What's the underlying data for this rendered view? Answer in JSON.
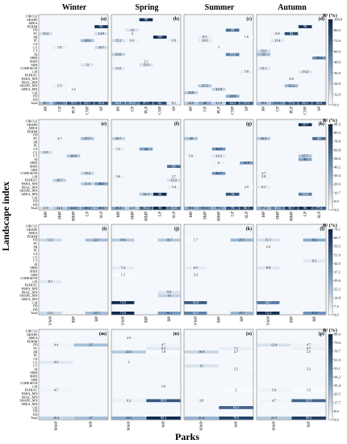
{
  "seasons": [
    "Winter",
    "Spring",
    "Summer",
    "Autumn"
  ],
  "ylabel": "Landscape index",
  "xlabel": "Parks",
  "colorbar_label": "R² (%)",
  "colors": {
    "low": "#ffffff",
    "high": "#0d2a4f"
  },
  "row_labels": [
    "CIRCLE",
    "SHAPE",
    "AREA",
    "PERIM",
    "PD",
    "PC",
    "PR",
    "PL",
    "CS",
    "CV",
    "CT",
    "AI",
    "SHEI",
    "SHDI",
    "SIDI",
    "COHESION",
    "LPI",
    "PAFRAC",
    "PARA_MN",
    "FRAC_MN",
    "SHAPE_MN",
    "AREA_MN",
    "LSI",
    "PD",
    "ED",
    "Total"
  ],
  "colorbars": [
    {
      "ticks": [
        "100.0",
        "86.0",
        "72.0",
        "60.0",
        "48.0",
        "36.0",
        "24.0",
        "12.0",
        "0.0"
      ]
    },
    {
      "ticks": [
        "98.5",
        "89.3",
        "78.6",
        "69.8",
        "58.6",
        "49.2",
        "39.4",
        "29.6",
        "19.7",
        "9.8",
        "0.0"
      ]
    },
    {
      "ticks": [
        "74.1",
        "66.7",
        "59.3",
        "51.9",
        "44.5",
        "37.1",
        "29.6",
        "22.2",
        "14.8",
        "7.4",
        "0.0"
      ]
    },
    {
      "ticks": [
        "88.4",
        "79.6",
        "70.7",
        "61.9",
        "53.1",
        "44.2",
        "35.4",
        "26.5",
        "17.7",
        "8.8",
        "0.0"
      ]
    }
  ],
  "chart_data": [
    {
      "tag": "(a)",
      "row": 0,
      "col": 0,
      "type": "heatmap",
      "categories": [
        "PP",
        "CP",
        "PLP",
        "COP",
        "SP"
      ],
      "cells": [
        [
          3,
          4,
          96.0
        ],
        [
          5,
          0,
          15.4
        ],
        [
          5,
          4,
          14.9
        ],
        [
          7,
          3,
          29.6
        ],
        [
          9,
          1,
          7.8
        ],
        [
          9,
          4,
          16.7
        ],
        [
          14,
          3,
          12
        ],
        [
          20,
          1,
          5.9
        ],
        [
          21,
          2,
          1.6
        ],
        [
          25,
          0,
          29.1
        ],
        [
          25,
          1,
          51.6
        ],
        [
          25,
          2,
          78.5
        ],
        [
          25,
          3,
          82.1
        ],
        [
          25,
          4,
          83.6
        ]
      ]
    },
    {
      "tag": "(b)",
      "row": 0,
      "col": 1,
      "type": "heatmap",
      "categories": [
        "PP",
        "CP",
        "PLP",
        "COP",
        "SP"
      ],
      "cells": [
        [
          1,
          2,
          98.0
        ],
        [
          4,
          1,
          14
        ],
        [
          5,
          1,
          4
        ],
        [
          6,
          3,
          100.0
        ],
        [
          7,
          0,
          15.2
        ],
        [
          7,
          1,
          6.6
        ],
        [
          7,
          4,
          6.9
        ],
        [
          11,
          0,
          21.6
        ],
        [
          13,
          2,
          3.1
        ],
        [
          14,
          2,
          13.9
        ],
        [
          15,
          0,
          11.6
        ],
        [
          25,
          0,
          64.8
        ],
        [
          25,
          1,
          61.9
        ],
        [
          25,
          2,
          87.1
        ],
        [
          25,
          3,
          82.0
        ],
        [
          25,
          4,
          8.1
        ]
      ]
    },
    {
      "tag": "(c)",
      "row": 0,
      "col": 2,
      "type": "heatmap",
      "categories": [
        "PP",
        "CP",
        "PLP",
        "COP",
        "SP"
      ],
      "cells": [
        [
          4,
          3,
          68.0
        ],
        [
          6,
          1,
          8.5
        ],
        [
          7,
          1,
          10.6
        ],
        [
          6,
          4,
          1.6
        ],
        [
          9,
          2,
          3
        ],
        [
          11,
          3,
          59.6
        ],
        [
          16,
          4,
          7.8
        ],
        [
          20,
          1,
          27.3
        ],
        [
          22,
          0,
          24.8
        ],
        [
          21,
          2,
          21.8
        ],
        [
          23,
          3,
          38.9
        ],
        [
          25,
          0,
          24.8
        ],
        [
          25,
          1,
          40.0
        ],
        [
          25,
          2,
          21.8
        ],
        [
          25,
          3,
          84.2
        ],
        [
          25,
          4,
          71.1
        ]
      ]
    },
    {
      "tag": "(d)",
      "row": 0,
      "col": 3,
      "type": "heatmap",
      "categories": [
        "PP",
        "CP",
        "PLP",
        "COP",
        "SP"
      ],
      "cells": [
        [
          3,
          3,
          96.0
        ],
        [
          5,
          1,
          6.8
        ],
        [
          5,
          2,
          84.0
        ],
        [
          7,
          1,
          11.4
        ],
        [
          10,
          0,
          15.6
        ],
        [
          11,
          0,
          31
        ],
        [
          12,
          4,
          50.4
        ],
        [
          15,
          0,
          12.1
        ],
        [
          16,
          3,
          13.2
        ],
        [
          18,
          2,
          4.9
        ],
        [
          20,
          2,
          33.3
        ],
        [
          25,
          0,
          29.6
        ],
        [
          25,
          1,
          51.6
        ],
        [
          25,
          2,
          77.2
        ],
        [
          25,
          3,
          82.1
        ],
        [
          25,
          4,
          83.6
        ]
      ]
    },
    {
      "tag": "(e)",
      "row": 1,
      "col": 0,
      "type": "heatmap",
      "categories": [
        "MP",
        "SMP",
        "MMP",
        "LP",
        "SLP"
      ],
      "cells": [
        [
          5,
          1,
          4.7
        ],
        [
          5,
          3,
          27.7
        ],
        [
          9,
          0,
          13.9
        ],
        [
          10,
          2,
          26.8
        ],
        [
          15,
          3,
          19.2
        ],
        [
          17,
          1,
          20.7
        ],
        [
          18,
          3,
          21.8
        ],
        [
          18,
          4,
          40.3
        ],
        [
          25,
          0,
          13.9
        ],
        [
          25,
          1,
          24.4
        ],
        [
          25,
          2,
          42.9
        ],
        [
          25,
          3,
          46.2
        ],
        [
          25,
          4,
          40.3
        ]
      ]
    },
    {
      "tag": "(f)",
      "row": 1,
      "col": 1,
      "type": "heatmap",
      "categories": [
        "MP",
        "SMP",
        "MMP",
        "LP",
        "SLP"
      ],
      "cells": [
        [
          5,
          0,
          20.7
        ],
        [
          8,
          0,
          7.3
        ],
        [
          8,
          2,
          42.0
        ],
        [
          13,
          4,
          66.0
        ],
        [
          16,
          0,
          5.6
        ],
        [
          16,
          4,
          3.7
        ],
        [
          17,
          4,
          15.2
        ],
        [
          19,
          4,
          7.4
        ],
        [
          21,
          2,
          24.3
        ],
        [
          21,
          3,
          98.0
        ],
        [
          25,
          0,
          40.4
        ],
        [
          25,
          1,
          24.8
        ],
        [
          25,
          2,
          70.2
        ],
        [
          25,
          3,
          98.0
        ],
        [
          25,
          4,
          63.8
        ]
      ]
    },
    {
      "tag": "(g)",
      "row": 1,
      "col": 2,
      "type": "heatmap",
      "categories": [
        "MP",
        "SMP",
        "MMP",
        "LP",
        "SLP"
      ],
      "cells": [
        [
          5,
          0,
          28
        ],
        [
          8,
          2,
          49.9
        ],
        [
          10,
          0,
          5.6
        ],
        [
          10,
          2,
          11.3
        ],
        [
          12,
          2,
          6
        ],
        [
          12,
          4,
          43.9
        ],
        [
          15,
          2,
          46.7
        ],
        [
          19,
          4,
          2.9
        ],
        [
          21,
          3,
          78.0
        ],
        [
          25,
          0,
          39.6
        ],
        [
          25,
          1,
          51.1
        ],
        [
          25,
          2,
          39.6
        ],
        [
          25,
          3,
          78.0
        ],
        [
          25,
          4,
          86.1
        ]
      ]
    },
    {
      "tag": "(h)",
      "row": 1,
      "col": 3,
      "type": "heatmap",
      "categories": [
        "MP",
        "SMP",
        "MMP",
        "LP",
        "SLP"
      ],
      "cells": [
        [
          1,
          3,
          98.5
        ],
        [
          5,
          0,
          26.2
        ],
        [
          5,
          4,
          69.0
        ],
        [
          10,
          3,
          27.7
        ],
        [
          11,
          3,
          42
        ],
        [
          15,
          0,
          4.7
        ],
        [
          16,
          0,
          5.8
        ],
        [
          19,
          0,
          9.1
        ],
        [
          21,
          3,
          59.8
        ],
        [
          25,
          0,
          37.4
        ],
        [
          25,
          1,
          60.2
        ],
        [
          25,
          2,
          88.7
        ],
        [
          25,
          3,
          96.0
        ],
        [
          25,
          4,
          77.4
        ]
      ]
    },
    {
      "tag": "(i)",
      "row": 2,
      "col": 0,
      "type": "heatmap",
      "categories": [
        "VWP",
        "BIP",
        "BP"
      ],
      "cells": [
        [
          4,
          0,
          13.1
        ],
        [
          4,
          2,
          22.7
        ],
        [
          16,
          0,
          8.1
        ],
        [
          25,
          0,
          13.1
        ],
        [
          25,
          2,
          22.7
        ]
      ]
    },
    {
      "tag": "(j)",
      "row": 2,
      "col": 1,
      "type": "heatmap",
      "categories": [
        "VWP",
        "BIP",
        "BP"
      ],
      "cells": [
        [
          4,
          0,
          18.6
        ],
        [
          4,
          2,
          18.7
        ],
        [
          12,
          0,
          7.2
        ],
        [
          14,
          0,
          1.3
        ],
        [
          19,
          2,
          9.8
        ],
        [
          20,
          2,
          16
        ],
        [
          22,
          0,
          74.8
        ],
        [
          25,
          0,
          74.8
        ],
        [
          25,
          2,
          34.1
        ]
      ]
    },
    {
      "tag": "(k)",
      "row": 2,
      "col": 2,
      "type": "heatmap",
      "categories": [
        "VWP",
        "BIP",
        "BP"
      ],
      "cells": [
        [
          4,
          0,
          1.7
        ],
        [
          4,
          2,
          25.7
        ],
        [
          12,
          0,
          6.5
        ],
        [
          14,
          0,
          3.2
        ],
        [
          22,
          0,
          56.8
        ],
        [
          25,
          0,
          44.2
        ],
        [
          25,
          2,
          25.7
        ]
      ]
    },
    {
      "tag": "(l)",
      "row": 2,
      "col": 3,
      "type": "heatmap",
      "categories": [
        "VWP",
        "BIP",
        "BP"
      ],
      "cells": [
        [
          4,
          0,
          11.7
        ],
        [
          4,
          2,
          29.2
        ],
        [
          6,
          0,
          2.4
        ],
        [
          12,
          0,
          8.9
        ],
        [
          10,
          2,
          8.2
        ],
        [
          22,
          0,
          46.7
        ],
        [
          25,
          0,
          72.4
        ],
        [
          25,
          2,
          37.4
        ]
      ]
    },
    {
      "tag": "(m)",
      "row": 3,
      "col": 0,
      "type": "heatmap",
      "categories": [
        "NWP",
        "WP"
      ],
      "cells": [
        [
          4,
          0,
          4.4
        ],
        [
          4,
          1,
          27
        ],
        [
          9,
          0,
          9.5
        ],
        [
          17,
          0,
          4.7
        ],
        [
          25,
          0,
          18.4
        ],
        [
          25,
          1,
          27
        ]
      ]
    },
    {
      "tag": "(n)",
      "row": 3,
      "col": 1,
      "type": "heatmap",
      "categories": [
        "NWP",
        "WP"
      ],
      "cells": [
        [
          2,
          0,
          2.9
        ],
        [
          4,
          1,
          4.7
        ],
        [
          5,
          1,
          9.2
        ],
        [
          6,
          0,
          22.4
        ],
        [
          6,
          1,
          1.8
        ],
        [
          9,
          0,
          3
        ],
        [
          16,
          1,
          3.9
        ],
        [
          20,
          0,
          6.3
        ],
        [
          20,
          1,
          68.8
        ],
        [
          25,
          0,
          34.6
        ],
        [
          25,
          1,
          88.4
        ]
      ]
    },
    {
      "tag": "(o)",
      "row": 3,
      "col": 2,
      "type": "heatmap",
      "categories": [
        "NWP",
        "WP"
      ],
      "cells": [
        [
          5,
          1,
          7.1
        ],
        [
          6,
          0,
          16.8
        ],
        [
          6,
          1,
          2.7
        ],
        [
          10,
          0,
          12
        ],
        [
          11,
          1,
          2.5
        ],
        [
          17,
          1,
          2
        ],
        [
          20,
          0,
          3.8
        ],
        [
          22,
          1,
          64.3
        ],
        [
          25,
          0,
          31.4
        ],
        [
          25,
          1,
          78.8
        ]
      ]
    },
    {
      "tag": "(p)",
      "row": 3,
      "col": 3,
      "type": "heatmap",
      "categories": [
        "NWP",
        "WP"
      ],
      "cells": [
        [
          4,
          0,
          12.4
        ],
        [
          4,
          1,
          4.7
        ],
        [
          5,
          1,
          6.7
        ],
        [
          6,
          1,
          2.5
        ],
        [
          11,
          1,
          3.3
        ],
        [
          17,
          0,
          5.4
        ],
        [
          17,
          1,
          1.5
        ],
        [
          20,
          0,
          4.7
        ],
        [
          20,
          1,
          62.8
        ],
        [
          25,
          0,
          22.5
        ],
        [
          25,
          1,
          80.6
        ]
      ]
    }
  ]
}
